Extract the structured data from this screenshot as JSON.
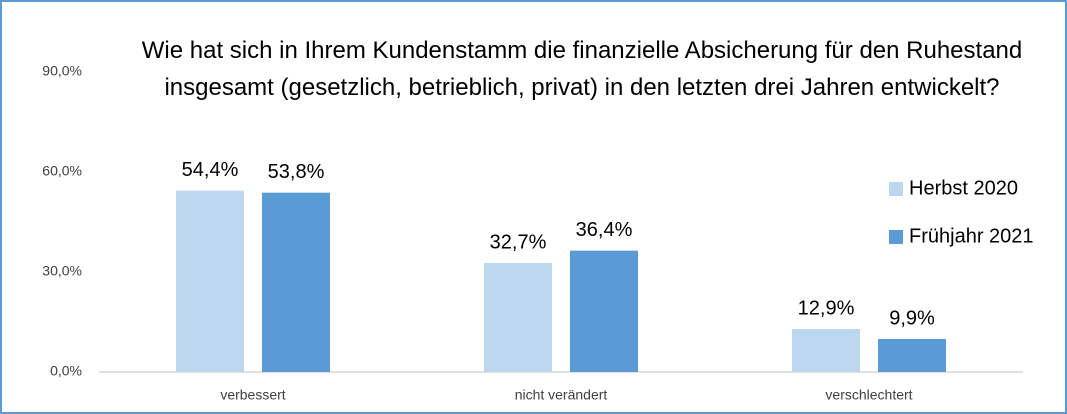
{
  "chart_data": {
    "type": "bar",
    "title": "Wie hat sich in Ihrem Kundenstamm die finanzielle Absicherung für den Ruhestand insgesamt (gesetzlich, betrieblich, privat) in den letzten drei Jahren entwickelt?",
    "categories": [
      "verbessert",
      "nicht verändert",
      "verschlechtert"
    ],
    "series": [
      {
        "name": "Herbst 2020",
        "color": "#bdd7ee",
        "values": [
          54.4,
          32.7,
          12.9
        ],
        "value_labels": [
          "54,4%",
          "32,7%",
          "12,9%"
        ]
      },
      {
        "name": "Frühjahr 2021",
        "color": "#5b9bd5",
        "values": [
          53.8,
          36.4,
          9.9
        ],
        "value_labels": [
          "53,8%",
          "36,4%",
          "9,9%"
        ]
      }
    ],
    "ylim": [
      0,
      90
    ],
    "yticks": [
      {
        "value": 0,
        "label": "0,0%"
      },
      {
        "value": 30,
        "label": "30,0%"
      },
      {
        "value": 60,
        "label": "60,0%"
      },
      {
        "value": 90,
        "label": "90,0%"
      }
    ],
    "grid": false,
    "legend": "right"
  }
}
